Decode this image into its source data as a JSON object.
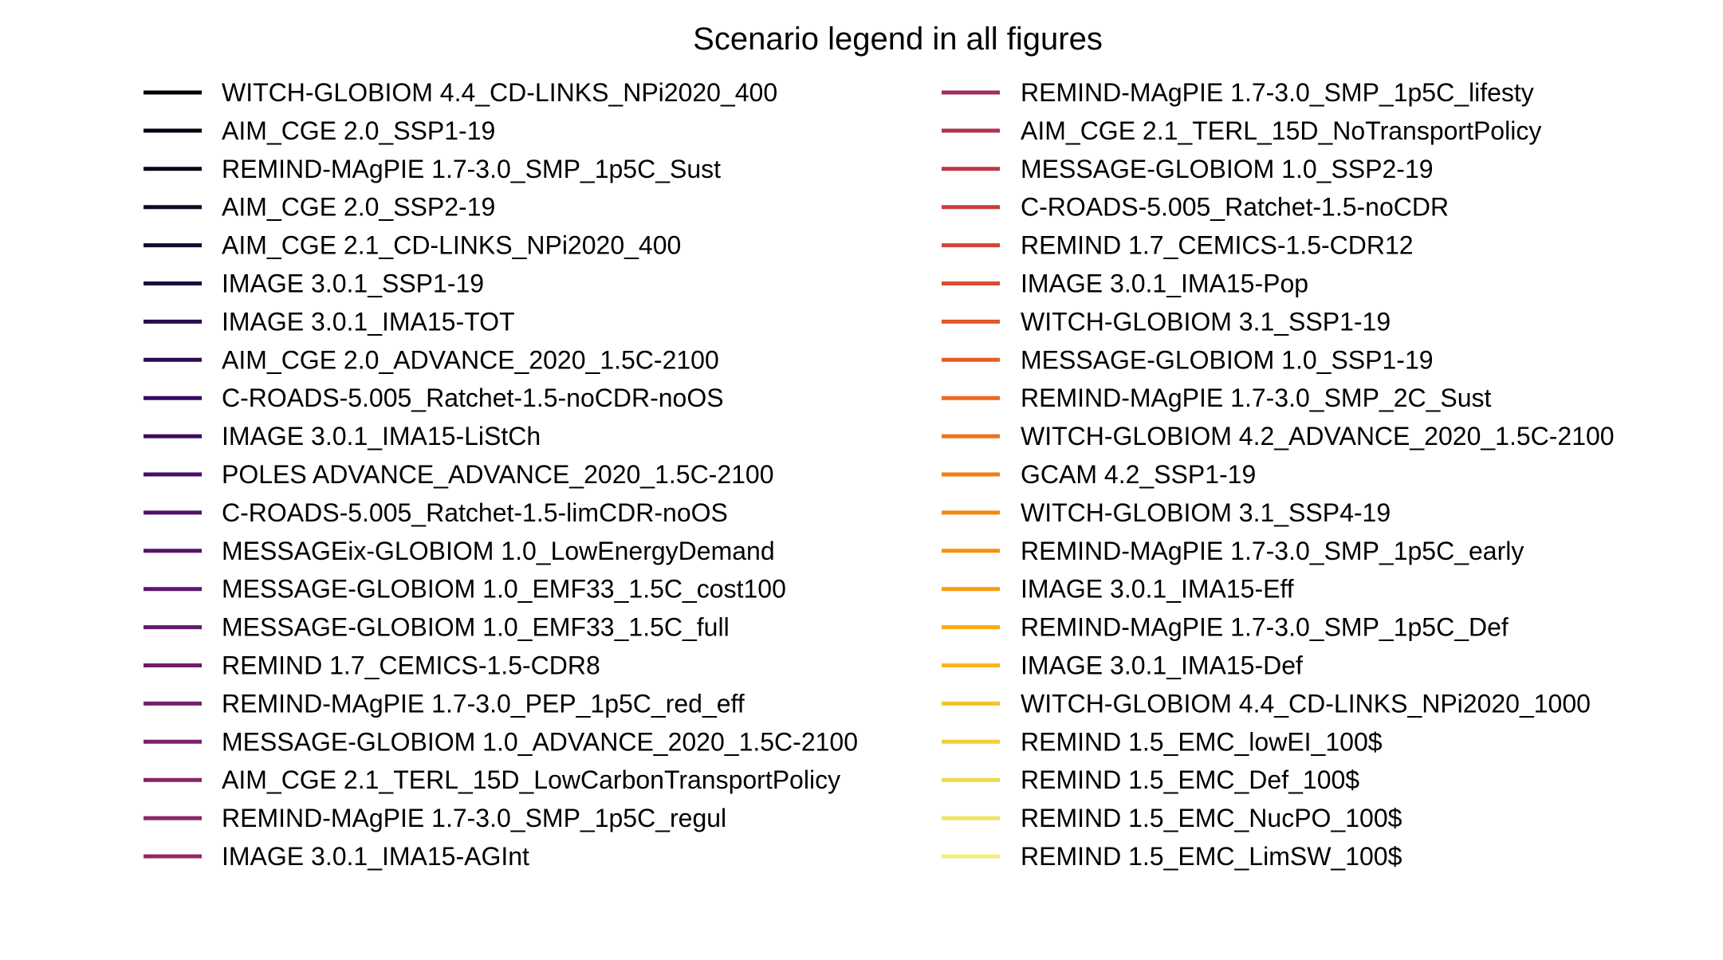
{
  "chart_data": {
    "type": "legend",
    "title": "Scenario legend in all figures",
    "columns": [
      {
        "entries": [
          {
            "label": "WITCH-GLOBIOM 4.4_CD-LINKS_NPi2020_400",
            "color": "#000004"
          },
          {
            "label": "AIM_CGE 2.0_SSP1-19",
            "color": "#03020c"
          },
          {
            "label": "REMIND-MAgPIE 1.7-3.0_SMP_1p5C_Sust",
            "color": "#080518"
          },
          {
            "label": "AIM_CGE 2.0_SSP2-19",
            "color": "#0e0824"
          },
          {
            "label": "AIM_CGE 2.1_CD-LINKS_NPi2020_400",
            "color": "#150b31"
          },
          {
            "label": "IMAGE 3.0.1_SSP1-19",
            "color": "#1d0c3e"
          },
          {
            "label": "IMAGE 3.0.1_IMA15-TOT",
            "color": "#250c4b"
          },
          {
            "label": "AIM_CGE 2.0_ADVANCE_2020_1.5C-2100",
            "color": "#2d0b56"
          },
          {
            "label": "C-ROADS-5.005_Ratchet-1.5-noCDR-noOS",
            "color": "#350a5f"
          },
          {
            "label": "IMAGE 3.0.1_IMA15-LiStCh",
            "color": "#3d0b65"
          },
          {
            "label": "POLES ADVANCE_ADVANCE_2020_1.5C-2100",
            "color": "#450d69"
          },
          {
            "label": "C-ROADS-5.005_Ratchet-1.5-limCDR-noOS",
            "color": "#4d106b"
          },
          {
            "label": "MESSAGEix-GLOBIOM 1.0_LowEnergyDemand",
            "color": "#55136e"
          },
          {
            "label": "MESSAGE-GLOBIOM 1.0_EMF33_1.5C_cost100",
            "color": "#5c166e"
          },
          {
            "label": "MESSAGE-GLOBIOM 1.0_EMF33_1.5C_full",
            "color": "#64196e"
          },
          {
            "label": "REMIND 1.7_CEMICS-1.5-CDR8",
            "color": "#6c1c6e"
          },
          {
            "label": "REMIND-MAgPIE 1.7-3.0_PEP_1p5C_red_eff",
            "color": "#741f6d"
          },
          {
            "label": "MESSAGE-GLOBIOM 1.0_ADVANCE_2020_1.5C-2100",
            "color": "#7b216b"
          },
          {
            "label": "AIM_CGE 2.1_TERL_15D_LowCarbonTransportPolicy",
            "color": "#842468"
          },
          {
            "label": "REMIND-MAgPIE 1.7-3.0_SMP_1p5C_regul",
            "color": "#8c2665"
          },
          {
            "label": "IMAGE 3.0.1_IMA15-AGInt",
            "color": "#942961"
          }
        ]
      },
      {
        "entries": [
          {
            "label": "REMIND-MAgPIE 1.7-3.0_SMP_1p5C_lifesty",
            "color": "#a02d5c"
          },
          {
            "label": "AIM_CGE 2.1_TERL_15D_NoTransportPolicy",
            "color": "#b03251"
          },
          {
            "label": "MESSAGE-GLOBIOM 1.0_SSP2-19",
            "color": "#bc3848"
          },
          {
            "label": "C-ROADS-5.005_Ratchet-1.5-noCDR",
            "color": "#c73e3f"
          },
          {
            "label": "REMIND 1.7_CEMICS-1.5-CDR12",
            "color": "#d14537"
          },
          {
            "label": "IMAGE 3.0.1_IMA15-Pop",
            "color": "#da4c30"
          },
          {
            "label": "WITCH-GLOBIOM 3.1_SSP1-19",
            "color": "#e15529"
          },
          {
            "label": "MESSAGE-GLOBIOM 1.0_SSP1-19",
            "color": "#e85e22"
          },
          {
            "label": "REMIND-MAgPIE 1.7-3.0_SMP_2C_Sust",
            "color": "#ed681c"
          },
          {
            "label": "WITCH-GLOBIOM 4.2_ADVANCE_2020_1.5C-2100",
            "color": "#f17216"
          },
          {
            "label": "GCAM 4.2_SSP1-19",
            "color": "#f47c11"
          },
          {
            "label": "WITCH-GLOBIOM 3.1_SSP4-19",
            "color": "#f6870d"
          },
          {
            "label": "REMIND-MAgPIE 1.7-3.0_SMP_1p5C_early",
            "color": "#f8920b"
          },
          {
            "label": "IMAGE 3.0.1_IMA15-Eff",
            "color": "#f99d0c"
          },
          {
            "label": "REMIND-MAgPIE 1.7-3.0_SMP_1p5C_Def",
            "color": "#f9a912"
          },
          {
            "label": "IMAGE 3.0.1_IMA15-Def",
            "color": "#f8b51c"
          },
          {
            "label": "WITCH-GLOBIOM 4.4_CD-LINKS_NPi2020_1000",
            "color": "#f6c128"
          },
          {
            "label": "REMIND 1.5_EMC_lowEI_100$",
            "color": "#f4cd38"
          },
          {
            "label": "REMIND 1.5_EMC_Def_100$",
            "color": "#f1d94b"
          },
          {
            "label": "REMIND 1.5_EMC_NucPO_100$",
            "color": "#f0e463"
          },
          {
            "label": "REMIND 1.5_EMC_LimSW_100$",
            "color": "#f2ed7c"
          }
        ]
      }
    ]
  }
}
